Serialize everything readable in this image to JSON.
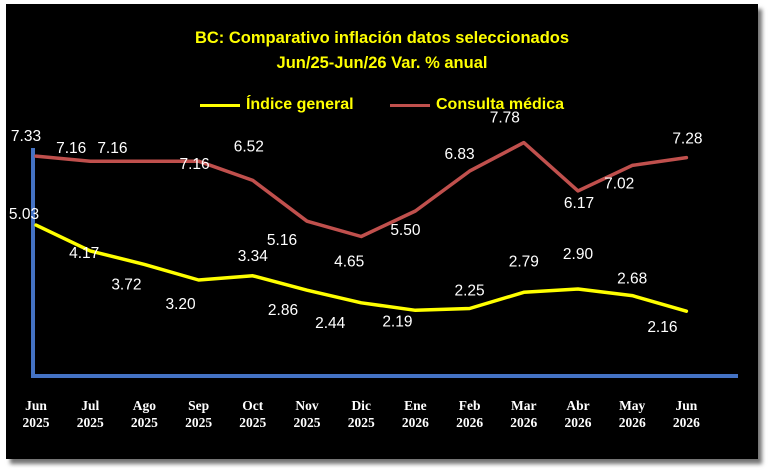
{
  "chart_data": {
    "type": "line",
    "title": "BC: Comparativo inflación datos seleccionados",
    "subtitle": "Jun/25-Jun/26 Var. % anual",
    "categories": [
      [
        "Jun",
        "2025"
      ],
      [
        "Jul",
        "2025"
      ],
      [
        "Ago",
        "2025"
      ],
      [
        "Sep",
        "2025"
      ],
      [
        "Oct",
        "2025"
      ],
      [
        "Nov",
        "2025"
      ],
      [
        "Dic",
        "2025"
      ],
      [
        "Ene",
        "2026"
      ],
      [
        "Feb",
        "2026"
      ],
      [
        "Mar",
        "2026"
      ],
      [
        "Abr",
        "2026"
      ],
      [
        "May",
        "2026"
      ],
      [
        "Jun",
        "2026"
      ]
    ],
    "series": [
      {
        "name": "Índice general",
        "color": "#ffff00",
        "values": [
          5.03,
          4.17,
          3.72,
          3.2,
          3.34,
          2.86,
          2.44,
          2.19,
          2.25,
          2.79,
          2.9,
          2.68,
          2.16
        ],
        "labels": [
          "5.03",
          "4.17",
          "3.72",
          "3.20",
          "3.34",
          "2.86",
          "2.44",
          "2.19",
          "2.25",
          "2.79",
          "2.90",
          "2.68",
          "2.16"
        ]
      },
      {
        "name": "Consulta médica",
        "color": "#c0504d",
        "values": [
          7.33,
          7.16,
          7.16,
          7.16,
          6.52,
          5.16,
          4.65,
          5.5,
          6.83,
          7.78,
          6.17,
          7.02,
          7.28
        ],
        "labels": [
          "7.33",
          "7.16",
          "7.16",
          "7.16",
          "6.52",
          "5.16",
          "4.65",
          "5.50",
          "6.83",
          "7.78",
          "6.17",
          "7.02",
          "7.28"
        ]
      }
    ],
    "ylim": [
      0,
      10
    ],
    "grid": false,
    "legend": "top",
    "axis_color": "#4472c4",
    "background": "#000000",
    "title_color": "#ffff00"
  }
}
